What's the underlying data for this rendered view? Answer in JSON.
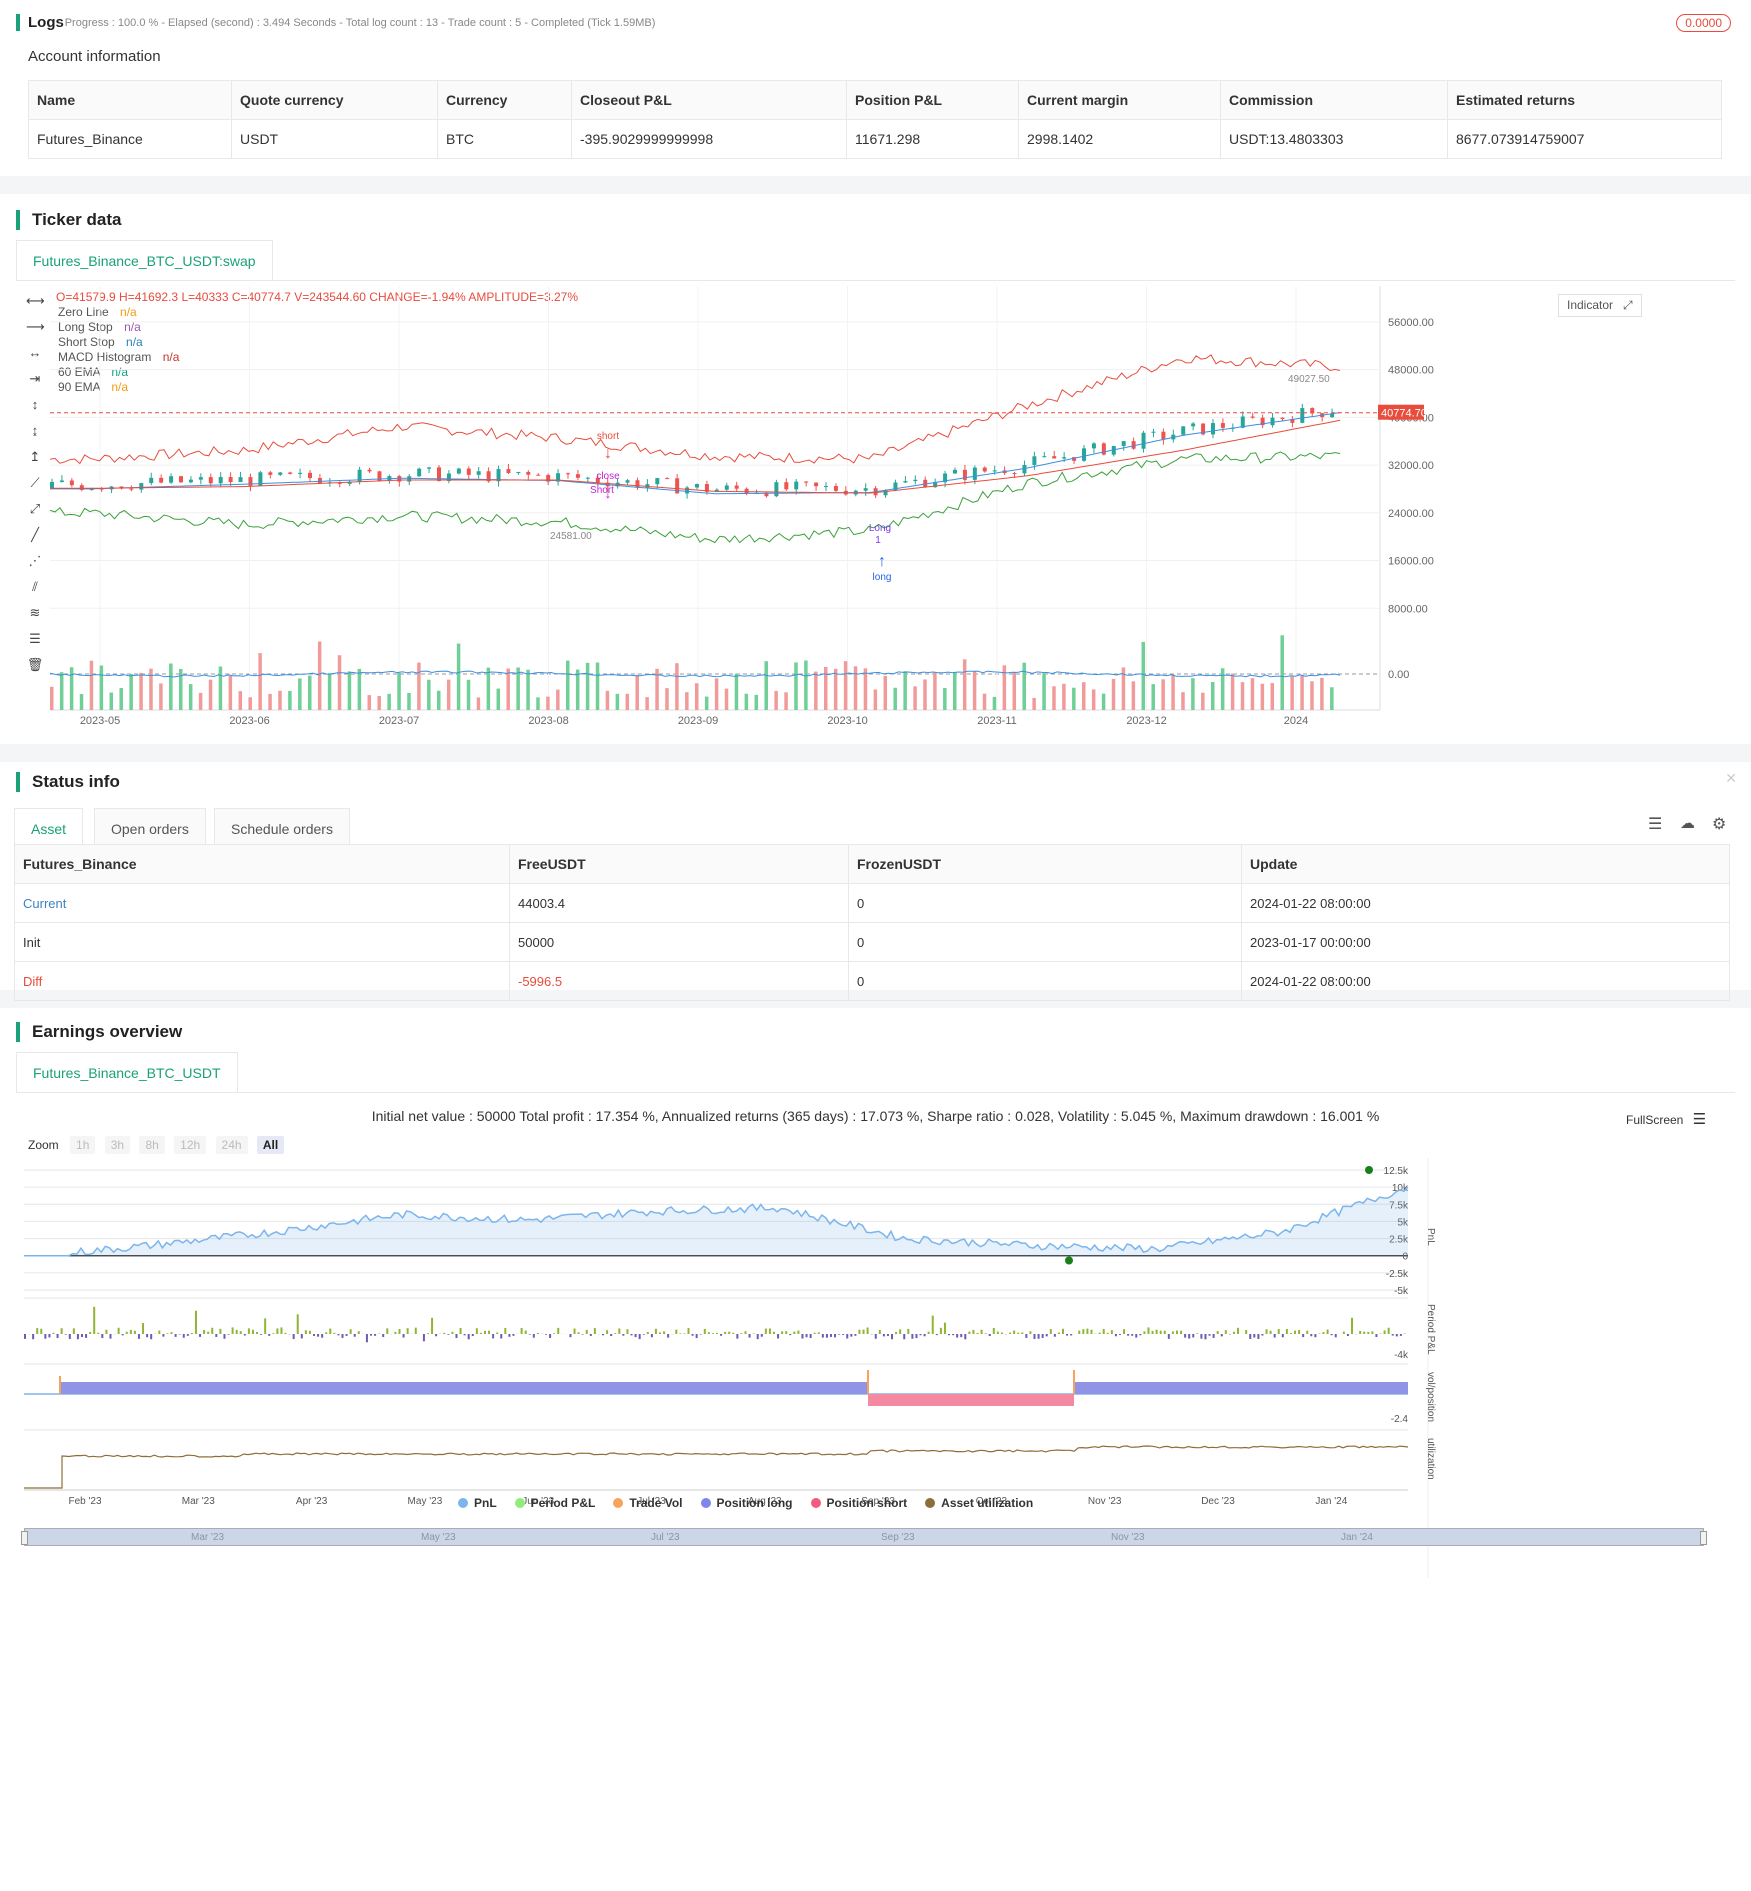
{
  "logs": {
    "title": "Logs",
    "status": "- Progress : 100.0 % - Elapsed (second) : 3.494 Seconds - Total log count : 13 - Trade count : 5 - Completed (Tick 1.59MB)",
    "badge": "0.0000"
  },
  "account": {
    "title": "Account information",
    "headers": [
      "Name",
      "Quote currency",
      "Currency",
      "Closeout P&L",
      "Position P&L",
      "Current margin",
      "Commission",
      "Estimated returns"
    ],
    "row": [
      "Futures_Binance",
      "USDT",
      "BTC",
      "-395.9029999999998",
      "11671.298",
      "2998.1402",
      "USDT:13.4803303",
      "8677.073914759007"
    ]
  },
  "ticker": {
    "title": "Ticker data",
    "tab": "Futures_Binance_BTC_USDT:swap",
    "ohlc_prefix": "O=",
    "ohlc": "O=41579.9 H=41692.3 L=40333 C=40774.7 V=243544.60 CHANGE=-1.94% AMPLITUDE=3.27%",
    "legend": [
      {
        "name": "Zero Line",
        "value": "n/a",
        "color": "#f39c12"
      },
      {
        "name": "Long Stop",
        "value": "n/a",
        "color": "#9b59b6"
      },
      {
        "name": "Short Stop",
        "value": "n/a",
        "color": "#2980b9"
      },
      {
        "name": "MACD Histogram",
        "value": "n/a",
        "color": "#c0392b"
      },
      {
        "name": "60 EMA",
        "value": "n/a",
        "color": "#16a085"
      },
      {
        "name": "90 EMA",
        "value": "n/a",
        "color": "#f39c12"
      }
    ],
    "indicator_btn": "Indicator",
    "price_axis": [
      "56000.00",
      "48000.00",
      "40000.00",
      "32000.00",
      "24000.00",
      "16000.00",
      "8000.00",
      "0.00"
    ],
    "last_price": "40774.70",
    "date_axis": [
      "2023-05",
      "2023-06",
      "2023-07",
      "2023-08",
      "2023-09",
      "2023-10",
      "2023-11",
      "2023-12",
      "2024"
    ],
    "annotations": {
      "short": "short",
      "close": "close",
      "Short": "Short",
      "long": "long",
      "Long": "Long",
      "low": "24581.00",
      "high": "49027.50",
      "one": "1"
    }
  },
  "status": {
    "title": "Status info",
    "tabs": [
      "Asset",
      "Open orders",
      "Schedule orders"
    ],
    "headers": [
      "Futures_Binance",
      "FreeUSDT",
      "FrozenUSDT",
      "Update"
    ],
    "rows": [
      [
        "Current",
        "44003.4",
        "0",
        "2024-01-22 08:00:00"
      ],
      [
        "Init",
        "50000",
        "0",
        "2023-01-17 00:00:00"
      ],
      [
        "Diff",
        "-5996.5",
        "0",
        "2024-01-22 08:00:00"
      ]
    ]
  },
  "earnings": {
    "title": "Earnings overview",
    "tab": "Futures_Binance_BTC_USDT",
    "summary": "Initial net value : 50000 Total profit : 17.354 %, Annualized returns (365 days) : 17.073 %, Sharpe ratio : 0.028, Volatility : 5.045 %, Maximum drawdown : 16.001 %",
    "fullscreen": "FullScreen",
    "zoom_label": "Zoom",
    "zoom_opts": [
      "1h",
      "3h",
      "8h",
      "12h",
      "24h",
      "All"
    ],
    "pnl_axis": [
      "12.5k",
      "10k",
      "7.5k",
      "5k",
      "2.5k",
      "0",
      "-2.5k",
      "-5k"
    ],
    "period_axis": [
      "-4k"
    ],
    "pos_axis": [
      "-2.4"
    ],
    "panel_labels": [
      "PnL",
      "Period P&L",
      "vol/position",
      "utilization"
    ],
    "months": [
      "Feb '23",
      "Mar '23",
      "Apr '23",
      "May '23",
      "Jun '23",
      "Jul '23",
      "Aug '23",
      "Sep '23",
      "Oct '23",
      "Nov '23",
      "Dec '23",
      "Jan '24"
    ],
    "navigator_months": [
      "Mar '23",
      "May '23",
      "Jul '23",
      "Sep '23",
      "Nov '23",
      "Jan '24"
    ],
    "legend": [
      {
        "name": "PnL",
        "color": "#7cb5ec"
      },
      {
        "name": "Period P&L",
        "color": "#90ed7d"
      },
      {
        "name": "Trade Vol",
        "color": "#f7a35c"
      },
      {
        "name": "Position long",
        "color": "#8085e9"
      },
      {
        "name": "Position short",
        "color": "#f15c80"
      },
      {
        "name": "Asset utilization",
        "color": "#8d6e3a"
      }
    ]
  },
  "chart_data": [
    {
      "type": "candlestick",
      "title": "",
      "x": [
        "2023-05",
        "2023-06",
        "2023-07",
        "2023-08",
        "2023-09",
        "2023-10",
        "2023-11",
        "2023-12",
        "2024"
      ],
      "ylim": [
        0,
        60000
      ],
      "last_close": 40774.7,
      "series": [
        {
          "name": "Short Stop",
          "values": [
            33000,
            34500,
            38500,
            36500,
            33500,
            33000,
            42000,
            50000,
            48500
          ]
        },
        {
          "name": "Long Stop",
          "values": [
            24000,
            22000,
            23500,
            22500,
            19500,
            21000,
            29000,
            33000,
            33500
          ]
        },
        {
          "name": "60 EMA",
          "values": [
            28000,
            28800,
            29800,
            29400,
            27200,
            27400,
            31500,
            37000,
            40800
          ]
        },
        {
          "name": "90 EMA",
          "values": [
            28100,
            28400,
            29500,
            29500,
            27600,
            27300,
            30200,
            34500,
            39500
          ]
        }
      ]
    },
    {
      "type": "area",
      "title": "",
      "ylabel": "PnL",
      "x": [
        "Feb '23",
        "Mar '23",
        "Apr '23",
        "May '23",
        "Jun '23",
        "Jul '23",
        "Aug '23",
        "Sep '23",
        "Oct '23",
        "Nov '23",
        "Dec '23",
        "Jan '24"
      ],
      "values": [
        -200,
        1500,
        3500,
        6000,
        5200,
        6500,
        7000,
        2500,
        1500,
        1000,
        3500,
        10000
      ],
      "ylim": [
        -5000,
        12500
      ]
    }
  ]
}
